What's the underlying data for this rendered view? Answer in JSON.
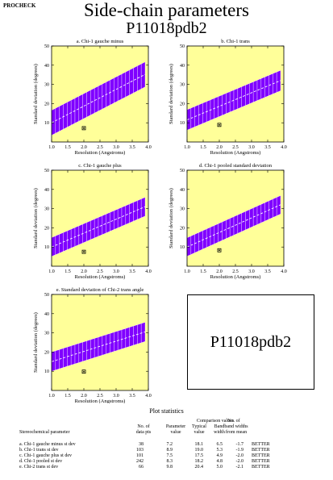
{
  "header": {
    "program": "PROCHECK",
    "title": "Side-chain parameters",
    "subtitle": "P11018pdb2"
  },
  "chart_data": [
    {
      "type": "scatter",
      "title": "a. Chi-1 gauche minus",
      "xlabel": "Resolution (Angstroms)",
      "ylabel": "Standard deviation (degrees)",
      "xlim": [
        1.0,
        4.0
      ],
      "ylim": [
        0,
        50
      ],
      "x_ticks": [
        "1.0",
        "1.5",
        "2.0",
        "2.5",
        "3.0",
        "3.5",
        "4.0"
      ],
      "y_ticks": [
        "10",
        "20",
        "30",
        "40",
        "50"
      ],
      "band": {
        "x": [
          1.0,
          3.9
        ],
        "mean": [
          10.0,
          35.2
        ],
        "half_width": 6.5
      },
      "points": [
        {
          "x": 2.0,
          "y": 7.2
        }
      ]
    },
    {
      "type": "scatter",
      "title": "b. Chi-1 trans",
      "xlabel": "Resolution (Angstroms)",
      "ylabel": "Standard deviation (degrees)",
      "xlim": [
        1.0,
        4.0
      ],
      "ylim": [
        0,
        50
      ],
      "x_ticks": [
        "1.0",
        "1.5",
        "2.0",
        "2.5",
        "3.0",
        "3.5",
        "4.0"
      ],
      "y_ticks": [
        "10",
        "20",
        "30",
        "40",
        "50"
      ],
      "band": {
        "x": [
          1.0,
          3.9
        ],
        "mean": [
          11.5,
          32.0
        ],
        "half_width": 5.3
      },
      "points": [
        {
          "x": 2.0,
          "y": 8.9
        }
      ]
    },
    {
      "type": "scatter",
      "title": "c. Chi-1 gauche plus",
      "xlabel": "Resolution (Angstroms)",
      "ylabel": "Standard deviation (degrees)",
      "xlim": [
        1.0,
        4.0
      ],
      "ylim": [
        0,
        50
      ],
      "x_ticks": [
        "1.0",
        "1.5",
        "2.0",
        "2.5",
        "3.0",
        "3.5",
        "4.0"
      ],
      "y_ticks": [
        "10",
        "20",
        "30",
        "40",
        "50"
      ],
      "band": {
        "x": [
          1.0,
          3.9
        ],
        "mean": [
          10.0,
          31.0
        ],
        "half_width": 4.9
      },
      "points": [
        {
          "x": 2.0,
          "y": 7.5
        }
      ]
    },
    {
      "type": "scatter",
      "title": "d. Chi-1 pooled standard deviation",
      "xlabel": "Resolution (Angstroms)",
      "ylabel": "Standard deviation (degrees)",
      "xlim": [
        1.0,
        4.0
      ],
      "ylim": [
        0,
        50
      ],
      "x_ticks": [
        "1.0",
        "1.5",
        "2.0",
        "2.5",
        "3.0",
        "3.5",
        "4.0"
      ],
      "y_ticks": [
        "10",
        "20",
        "30",
        "40",
        "50"
      ],
      "band": {
        "x": [
          1.0,
          3.9
        ],
        "mean": [
          10.0,
          32.0
        ],
        "half_width": 4.8
      },
      "points": [
        {
          "x": 2.0,
          "y": 8.3
        }
      ]
    },
    {
      "type": "scatter",
      "title": "e. Standard deviation of Chi-2 trans angle",
      "xlabel": "Resolution (Angstroms)",
      "ylabel": "Standard deviation (degrees)",
      "xlim": [
        1.0,
        4.0
      ],
      "ylim": [
        0,
        50
      ],
      "x_ticks": [
        "1.0",
        "1.5",
        "2.0",
        "2.5",
        "3.0",
        "3.5",
        "4.0"
      ],
      "y_ticks": [
        "10",
        "20",
        "30",
        "40",
        "50"
      ],
      "band": {
        "x": [
          1.0,
          3.9
        ],
        "mean": [
          15.0,
          30.5
        ],
        "half_width": 5.0
      },
      "points": [
        {
          "x": 2.0,
          "y": 9.8
        }
      ]
    }
  ],
  "id_box": {
    "label": "P11018pdb2"
  },
  "stats": {
    "title": "Plot statistics",
    "headers": {
      "param": "Stereochemical parameter",
      "npts_1": "No. of",
      "npts_2": "data pts",
      "value_1": "Parameter",
      "value_2": "value",
      "comparison": "Comparison values",
      "typical_1": "Typical",
      "typical_2": "value",
      "band_1": "Band",
      "band_2": "width",
      "nbw_1": "No. of",
      "nbw_2": "band widths",
      "nbw_3": "from mean"
    },
    "rows": [
      {
        "param": "a. Chi-1 gauche minus st dev",
        "n": "38",
        "value": "7.2",
        "typical": "18.1",
        "band": "6.5",
        "bw": "-1.7",
        "verdict": "BETTER"
      },
      {
        "param": "b. Chi-1 trans st dev",
        "n": "103",
        "value": "8.9",
        "typical": "19.0",
        "band": "5.3",
        "bw": "-1.9",
        "verdict": "BETTER"
      },
      {
        "param": "c. Chi-1 gauche plus st dev",
        "n": "101",
        "value": "7.5",
        "typical": "17.5",
        "band": "4.9",
        "bw": "-2.0",
        "verdict": "BETTER"
      },
      {
        "param": "d. Chi-1 pooled st dev",
        "n": "242",
        "value": "8.3",
        "typical": "18.2",
        "band": "4.8",
        "bw": "-2.0",
        "verdict": "BETTER"
      },
      {
        "param": "e. Chi-2 trans st dev",
        "n": "66",
        "value": "9.8",
        "typical": "20.4",
        "band": "5.0",
        "bw": "-2.1",
        "verdict": "BETTER"
      }
    ]
  },
  "colors": {
    "plot_bg": "#ffff99",
    "band": "#7f00ff",
    "mean_line": "#ffffff",
    "point": "#000000"
  }
}
